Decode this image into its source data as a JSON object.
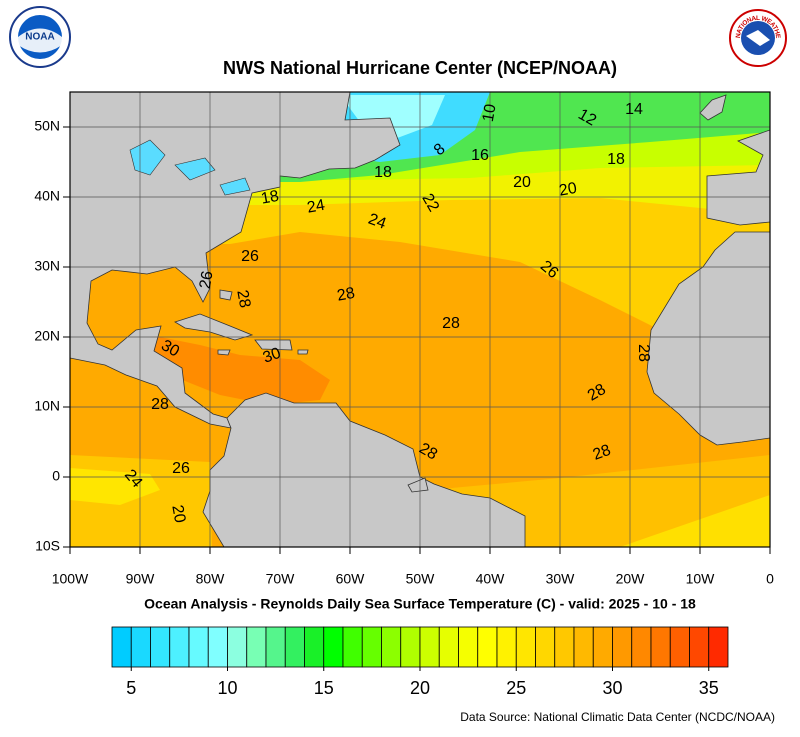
{
  "title": "NWS National Hurricane Center (NCEP/NOAA)",
  "subtitle": "Ocean Analysis - Reynolds Daily Sea Surface Temperature (C) - valid: 2025 - 10 - 18",
  "source": "Data Source: National Climatic Data Center (NCDC/NOAA)",
  "logos": {
    "left": "NOAA",
    "right": "NATIONAL WEATHER SERVICE"
  },
  "map": {
    "lonlim": [
      -100,
      0
    ],
    "latlim": [
      -10,
      55
    ],
    "lonticks": [
      {
        "value": -100,
        "label": "100W"
      },
      {
        "value": -90,
        "label": "90W"
      },
      {
        "value": -80,
        "label": "80W"
      },
      {
        "value": -70,
        "label": "70W"
      },
      {
        "value": -60,
        "label": "60W"
      },
      {
        "value": -50,
        "label": "50W"
      },
      {
        "value": -40,
        "label": "40W"
      },
      {
        "value": -30,
        "label": "30W"
      },
      {
        "value": -20,
        "label": "20W"
      },
      {
        "value": -10,
        "label": "10W"
      },
      0
    ],
    "latticks": [
      {
        "value": -10,
        "label": "10S"
      },
      0,
      {
        "value": 10,
        "label": "10N"
      },
      {
        "value": 20,
        "label": "20N"
      },
      {
        "value": 30,
        "label": "30N"
      },
      {
        "value": 40,
        "label": "40N"
      },
      {
        "value": 50,
        "label": "50N"
      }
    ],
    "grid": true,
    "contour_labels": [
      10,
      12,
      14,
      16,
      8,
      18,
      18,
      20,
      20,
      18,
      24,
      22,
      24,
      26,
      26,
      26,
      28,
      28,
      28,
      28,
      30,
      30,
      28,
      28,
      28,
      28,
      26,
      24,
      20
    ]
  },
  "colorbar": {
    "range": [
      4,
      36
    ],
    "ticks": [
      5,
      10,
      15,
      20,
      25,
      30,
      35
    ],
    "colors": [
      "#00ccff",
      "#1ad9ff",
      "#33e6ff",
      "#4df0ff",
      "#66faff",
      "#80ffff",
      "#8cffe0",
      "#78ffb4",
      "#55f58c",
      "#33f060",
      "#19f028",
      "#00ff00",
      "#40ff00",
      "#66ff00",
      "#8cff00",
      "#b0ff00",
      "#ccff00",
      "#e6ff00",
      "#f5ff00",
      "#ffff00",
      "#fff200",
      "#ffe600",
      "#ffd700",
      "#ffc800",
      "#ffb900",
      "#ffaa00",
      "#ff9900",
      "#ff8800",
      "#ff7700",
      "#ff6000",
      "#ff4800",
      "#ff2a00"
    ]
  }
}
